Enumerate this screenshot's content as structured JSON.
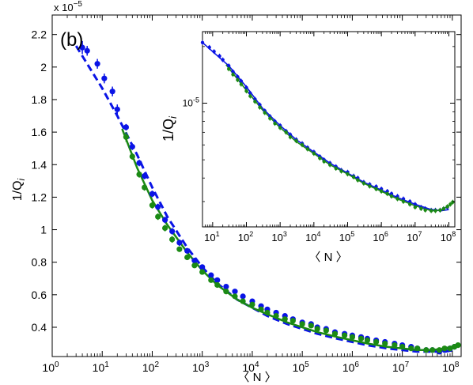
{
  "chart_data": [
    {
      "id": "main",
      "type": "scatter",
      "panel_label": "(b)",
      "scale_factor_label": "x 10",
      "scale_factor_exponent": "−5",
      "xscale": "log",
      "xlim": [
        1,
        150000000
      ],
      "ylim": [
        0.22,
        2.32
      ],
      "xlabel": "〈 N 〉",
      "ylabel": "1/Q",
      "ylabel_subscript": "i",
      "grid": false,
      "x_ticks": [
        {
          "value": 1,
          "base": "10",
          "exp": "0"
        },
        {
          "value": 10,
          "base": "10",
          "exp": "1"
        },
        {
          "value": 100,
          "base": "10",
          "exp": "2"
        },
        {
          "value": 1000,
          "base": "10",
          "exp": "3"
        },
        {
          "value": 10000,
          "base": "10",
          "exp": "4"
        },
        {
          "value": 100000,
          "base": "10",
          "exp": "5"
        },
        {
          "value": 1000000,
          "base": "10",
          "exp": "6"
        },
        {
          "value": 10000000,
          "base": "10",
          "exp": "7"
        },
        {
          "value": 100000000,
          "base": "10",
          "exp": "8"
        }
      ],
      "y_ticks": [
        {
          "value": 0.4,
          "label": "0.4"
        },
        {
          "value": 0.6,
          "label": "0.6"
        },
        {
          "value": 0.8,
          "label": "0.8"
        },
        {
          "value": 1.0,
          "label": "1"
        },
        {
          "value": 1.2,
          "label": "1.2"
        },
        {
          "value": 1.4,
          "label": "1.4"
        },
        {
          "value": 1.6,
          "label": "1.6"
        },
        {
          "value": 1.8,
          "label": "1.8"
        },
        {
          "value": 2.0,
          "label": "2"
        },
        {
          "value": 2.2,
          "label": "2.2"
        }
      ],
      "series": [
        {
          "color": "#0a14e6",
          "style": "points-with-errorbars",
          "x": [
            4,
            5,
            8,
            11,
            16,
            20,
            30,
            40,
            55,
            70,
            100,
            130,
            180,
            250,
            350,
            500,
            700,
            1000,
            1500,
            2000,
            3000,
            4500,
            6500,
            10000,
            15000,
            20000,
            30000,
            45000,
            65000,
            100000,
            150000,
            200000,
            300000,
            450000,
            700000,
            1000000,
            1500000,
            2000000,
            3000000,
            4500000,
            7000000,
            10000000,
            15000000,
            20000000,
            30000000,
            40000000,
            55000000,
            70000000,
            90000000,
            110000000
          ],
          "y": [
            2.12,
            2.1,
            2.02,
            1.93,
            1.85,
            1.74,
            1.63,
            1.51,
            1.41,
            1.33,
            1.22,
            1.14,
            1.06,
            0.99,
            0.92,
            0.87,
            0.81,
            0.77,
            0.72,
            0.69,
            0.65,
            0.62,
            0.59,
            0.56,
            0.53,
            0.51,
            0.49,
            0.47,
            0.45,
            0.43,
            0.42,
            0.4,
            0.39,
            0.37,
            0.36,
            0.35,
            0.34,
            0.33,
            0.32,
            0.31,
            0.3,
            0.29,
            0.28,
            0.27,
            0.26,
            0.26,
            0.25,
            0.26,
            0.27,
            0.28
          ],
          "err": [
            0.04,
            0.03,
            0.03,
            0.03,
            0.03,
            0.03,
            0.02,
            0.02,
            0.02,
            0.02,
            0.02,
            0.02,
            0.02,
            0.02,
            0.02,
            0.015,
            0.015,
            0.015,
            0.015,
            0.015,
            0.01,
            0.01,
            0.01,
            0.01,
            0.01,
            0.01,
            0.01,
            0.01,
            0.01,
            0.01,
            0.01,
            0.01,
            0.01,
            0.01,
            0.01,
            0.01,
            0.01,
            0.01,
            0.01,
            0.01,
            0.01,
            0.01,
            0.01,
            0.01,
            0.01,
            0.01,
            0.01,
            0.01,
            0.01,
            0.01
          ],
          "fit_x": [
            3,
            5,
            10,
            20,
            50,
            100,
            200,
            500,
            1000,
            2000,
            5000,
            10000,
            20000,
            50000,
            100000,
            200000,
            500000,
            1000000,
            2000000,
            5000000,
            10000000,
            20000000,
            40000000,
            70000000,
            110000000
          ],
          "fit_y": [
            2.13,
            2.02,
            1.87,
            1.7,
            1.46,
            1.26,
            1.08,
            0.89,
            0.77,
            0.67,
            0.57,
            0.52,
            0.47,
            0.42,
            0.39,
            0.36,
            0.33,
            0.31,
            0.29,
            0.27,
            0.26,
            0.25,
            0.25,
            0.25,
            0.26
          ],
          "fit_style": "dashed"
        },
        {
          "color": "#1b8a14",
          "style": "points-with-errorbars",
          "x": [
            30,
            40,
            55,
            70,
            100,
            130,
            180,
            250,
            350,
            500,
            700,
            1000,
            1500,
            2000,
            3000,
            4500,
            6500,
            10000,
            15000,
            20000,
            30000,
            45000,
            65000,
            100000,
            150000,
            200000,
            300000,
            450000,
            700000,
            1000000,
            1500000,
            2000000,
            3000000,
            4500000,
            7000000,
            10000000,
            15000000,
            20000000,
            30000000,
            40000000,
            55000000,
            70000000,
            90000000,
            110000000,
            130000000
          ],
          "y": [
            1.57,
            1.45,
            1.34,
            1.26,
            1.15,
            1.08,
            1.01,
            0.94,
            0.88,
            0.83,
            0.78,
            0.74,
            0.69,
            0.66,
            0.62,
            0.59,
            0.56,
            0.54,
            0.51,
            0.49,
            0.47,
            0.45,
            0.44,
            0.42,
            0.41,
            0.39,
            0.38,
            0.36,
            0.35,
            0.34,
            0.33,
            0.32,
            0.31,
            0.3,
            0.29,
            0.28,
            0.27,
            0.27,
            0.26,
            0.26,
            0.26,
            0.27,
            0.27,
            0.28,
            0.29
          ],
          "err": [
            0.03,
            0.02,
            0.02,
            0.02,
            0.02,
            0.02,
            0.02,
            0.02,
            0.015,
            0.015,
            0.015,
            0.015,
            0.015,
            0.01,
            0.01,
            0.01,
            0.01,
            0.01,
            0.01,
            0.01,
            0.01,
            0.01,
            0.01,
            0.01,
            0.01,
            0.01,
            0.01,
            0.01,
            0.01,
            0.01,
            0.01,
            0.01,
            0.01,
            0.01,
            0.01,
            0.01,
            0.01,
            0.01,
            0.01,
            0.01,
            0.01,
            0.01,
            0.01,
            0.01,
            0.01
          ],
          "fit_x": [
            25,
            50,
            100,
            200,
            500,
            1000,
            2000,
            5000,
            10000,
            20000,
            50000,
            100000,
            200000,
            500000,
            1000000,
            2000000,
            5000000,
            10000000,
            20000000,
            40000000,
            70000000,
            130000000
          ],
          "fit_y": [
            1.62,
            1.38,
            1.18,
            1.03,
            0.86,
            0.75,
            0.66,
            0.57,
            0.52,
            0.48,
            0.43,
            0.4,
            0.37,
            0.34,
            0.32,
            0.3,
            0.28,
            0.27,
            0.26,
            0.26,
            0.27,
            0.29
          ],
          "fit_style": "solid"
        }
      ]
    },
    {
      "id": "inset",
      "type": "scatter",
      "xscale": "log",
      "yscale": "log",
      "xlim": [
        5,
        150000000
      ],
      "ylim": [
        2.2e-06,
        2.4e-05
      ],
      "xlabel": "〈 N 〉",
      "ylabel": "1/Q",
      "ylabel_subscript": "i",
      "grid": false,
      "x_ticks": [
        {
          "value": 10,
          "base": "10",
          "exp": "1"
        },
        {
          "value": 100,
          "base": "10",
          "exp": "2"
        },
        {
          "value": 1000,
          "base": "10",
          "exp": "3"
        },
        {
          "value": 10000,
          "base": "10",
          "exp": "4"
        },
        {
          "value": 100000,
          "base": "10",
          "exp": "5"
        },
        {
          "value": 1000000,
          "base": "10",
          "exp": "6"
        },
        {
          "value": 10000000,
          "base": "10",
          "exp": "7"
        },
        {
          "value": 100000000,
          "base": "10",
          "exp": "8"
        }
      ],
      "y_ticks": [
        {
          "value": 1e-05,
          "base": "10",
          "exp": "-5"
        }
      ],
      "series": [
        {
          "color": "#0a14e6",
          "x": [
            5,
            8,
            11,
            16,
            20,
            30,
            40,
            55,
            70,
            100,
            130,
            180,
            250,
            350,
            500,
            700,
            1000,
            1500,
            2000,
            3000,
            4500,
            6500,
            10000,
            15000,
            20000,
            30000,
            45000,
            65000,
            100000,
            150000,
            200000,
            300000,
            450000,
            700000,
            1000000,
            1500000,
            2000000,
            3000000,
            4500000,
            7000000,
            10000000,
            15000000,
            20000000,
            30000000,
            40000000,
            55000000,
            70000000,
            90000000
          ],
          "y": [
            2.1e-05,
            1.98e-05,
            1.88e-05,
            1.78e-05,
            1.7e-05,
            1.58e-05,
            1.47e-05,
            1.38e-05,
            1.31e-05,
            1.21e-05,
            1.13e-05,
            1.05e-05,
            9.8e-06,
            9.1e-06,
            8.5e-06,
            8e-06,
            7.6e-06,
            7.1e-06,
            6.8e-06,
            6.4e-06,
            6.1e-06,
            5.8e-06,
            5.5e-06,
            5.2e-06,
            5e-06,
            4.8e-06,
            4.6e-06,
            4.4e-06,
            4.3e-06,
            4.1e-06,
            4e-06,
            3.8e-06,
            3.7e-06,
            3.6e-06,
            3.5e-06,
            3.4e-06,
            3.3e-06,
            3.2e-06,
            3.1e-06,
            3e-06,
            2.9e-06,
            2.8e-06,
            2.75e-06,
            2.7e-06,
            2.7e-06,
            2.7e-06,
            2.75e-06,
            2.8e-06
          ],
          "fit_x": [
            5,
            10,
            30,
            100,
            300,
            1000,
            3000,
            10000,
            30000,
            100000,
            300000,
            1000000,
            3000000,
            10000000,
            30000000,
            60000000,
            100000000
          ],
          "fit_y": [
            2.1e-05,
            1.88e-05,
            1.58e-05,
            1.22e-05,
            9.4e-06,
            7.6e-06,
            6.4e-06,
            5.5e-06,
            4.8e-06,
            4.25e-06,
            3.8e-06,
            3.45e-06,
            3.15e-06,
            2.9e-06,
            2.72e-06,
            2.68e-06,
            2.72e-06
          ],
          "fit_style": "solid"
        },
        {
          "color": "#1b8a14",
          "x": [
            30,
            40,
            55,
            70,
            100,
            130,
            180,
            250,
            350,
            500,
            700,
            1000,
            1500,
            2000,
            3000,
            4500,
            6500,
            10000,
            15000,
            20000,
            30000,
            45000,
            65000,
            100000,
            150000,
            200000,
            300000,
            450000,
            700000,
            1000000,
            1500000,
            2000000,
            3000000,
            4500000,
            7000000,
            10000000,
            15000000,
            20000000,
            30000000,
            40000000,
            55000000,
            70000000,
            90000000,
            110000000,
            130000000
          ],
          "y": [
            1.52e-05,
            1.42e-05,
            1.33e-05,
            1.26e-05,
            1.16e-05,
            1.09e-05,
            1.02e-05,
            9.5e-06,
            8.9e-06,
            8.3e-06,
            7.8e-06,
            7.4e-06,
            7e-06,
            6.6e-06,
            6.3e-06,
            6e-06,
            5.7e-06,
            5.4e-06,
            5.1e-06,
            4.9e-06,
            4.7e-06,
            4.5e-06,
            4.35e-06,
            4.2e-06,
            4.05e-06,
            3.9e-06,
            3.75e-06,
            3.62e-06,
            3.5e-06,
            3.4e-06,
            3.3e-06,
            3.2e-06,
            3.1e-06,
            3e-06,
            2.9e-06,
            2.8e-06,
            2.75e-06,
            2.7e-06,
            2.68e-06,
            2.68e-06,
            2.7e-06,
            2.75e-06,
            2.82e-06,
            2.9e-06,
            2.98e-06
          ],
          "fit_x": [
            25,
            100,
            300,
            1000,
            3000,
            10000,
            30000,
            100000,
            300000,
            1000000,
            3000000,
            10000000,
            30000000,
            60000000,
            100000000,
            130000000
          ],
          "fit_y": [
            1.6e-05,
            1.17e-05,
            9.2e-06,
            7.4e-06,
            6.25e-06,
            5.4e-06,
            4.7e-06,
            4.2e-06,
            3.75e-06,
            3.4e-06,
            3.1e-06,
            2.85e-06,
            2.68e-06,
            2.7e-06,
            2.85e-06,
            2.95e-06
          ],
          "fit_style": "solid"
        }
      ]
    }
  ]
}
